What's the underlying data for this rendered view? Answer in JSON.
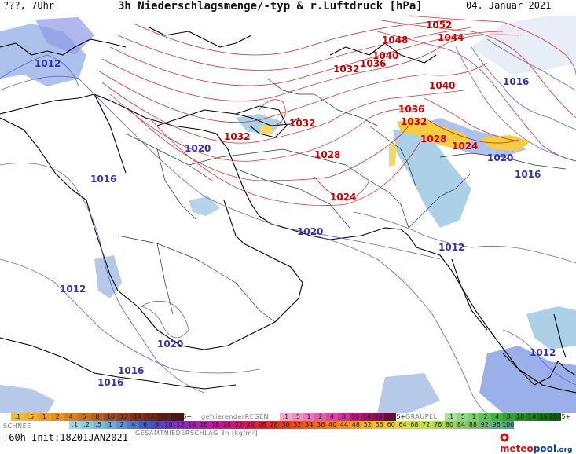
{
  "header": {
    "time_label": "???, 7Uhr",
    "title": "3h Niederschlagsmenge/-typ & r.Luftdruck [hPa]",
    "date": "04. Januar 2021"
  },
  "isobar_labels": [
    {
      "text": "1052",
      "color": "#cc0000"
    },
    {
      "text": "1048",
      "color": "#cc0000"
    },
    {
      "text": "1044",
      "color": "#cc0000"
    },
    {
      "text": "1040",
      "color": "#cc0000"
    },
    {
      "text": "1036",
      "color": "#cc0000"
    },
    {
      "text": "1032",
      "color": "#cc0000"
    },
    {
      "text": "1040",
      "color": "#cc0000"
    },
    {
      "text": "1036",
      "color": "#cc0000"
    },
    {
      "text": "1032",
      "color": "#cc0000"
    },
    {
      "text": "1032",
      "color": "#cc0000"
    },
    {
      "text": "1032",
      "color": "#cc0000"
    },
    {
      "text": "1028",
      "color": "#cc0000"
    },
    {
      "text": "1028",
      "color": "#cc0000"
    },
    {
      "text": "1024",
      "color": "#cc0000"
    },
    {
      "text": "1024",
      "color": "#cc0000"
    },
    {
      "text": "1016",
      "color": "#3333aa"
    },
    {
      "text": "1020",
      "color": "#3333aa"
    },
    {
      "text": "1016",
      "color": "#3333aa"
    },
    {
      "text": "1020",
      "color": "#3333aa"
    },
    {
      "text": "1016",
      "color": "#3333aa"
    },
    {
      "text": "1020",
      "color": "#3333aa"
    },
    {
      "text": "1012",
      "color": "#3333aa"
    },
    {
      "text": "1012",
      "color": "#3333aa"
    },
    {
      "text": "1012",
      "color": "#3333aa"
    },
    {
      "text": "1020",
      "color": "#3333aa"
    },
    {
      "text": "1016",
      "color": "#3333aa"
    },
    {
      "text": "1016",
      "color": "#3333aa"
    },
    {
      "text": "1012",
      "color": "#3333aa"
    }
  ],
  "legend": {
    "snow": {
      "label": "SCHNEE",
      "ticks": [
        ".1",
        ".5",
        "1",
        "2",
        "4",
        "6",
        "8",
        "10",
        "12",
        "14",
        "16",
        "18",
        "2025+"
      ]
    },
    "freezing_rain": {
      "label": "gefrierenderREGEN",
      "ticks": [
        ".1",
        ".5",
        "1",
        "2",
        "4",
        "8",
        "10",
        "14",
        "16",
        "2025+"
      ]
    },
    "graupel": {
      "label": "GRAUPEL",
      "ticks": [
        ".1",
        ".5",
        "1",
        "2",
        "4",
        "8",
        "10",
        "14",
        "16",
        "2025+"
      ]
    },
    "total": {
      "label": "GESAMTNIEDERSCHLAG 3h [kg/m²]",
      "ticks": [
        ".1",
        ".2",
        ".5",
        "1",
        "2",
        "4",
        "6",
        "8",
        "10",
        "12",
        "14",
        "16",
        "18",
        "20",
        "22",
        "24",
        "26",
        "28",
        "30",
        "32",
        "34",
        "36",
        "40",
        "44",
        "48",
        "52",
        "56",
        "60",
        "64",
        "68",
        "72",
        "76",
        "80",
        "84",
        "88",
        "92",
        "96",
        "100"
      ]
    }
  },
  "footer": {
    "run": "+60h Init:18Z01JAN2021",
    "brand_a": "meteo",
    "brand_b": "pool",
    "brand_c": ".org"
  },
  "colors": {
    "high_isobar": "#cc2222",
    "low_isobar": "#5555bb",
    "coastline": "#000000",
    "border": "#333333",
    "snow_precip": "#8ab4dd",
    "mixed_precip": "#f0c020",
    "brand_red": "#d01010",
    "brand_blue": "#1040a0"
  },
  "icons": [
    "meteopool-logo-icon"
  ]
}
